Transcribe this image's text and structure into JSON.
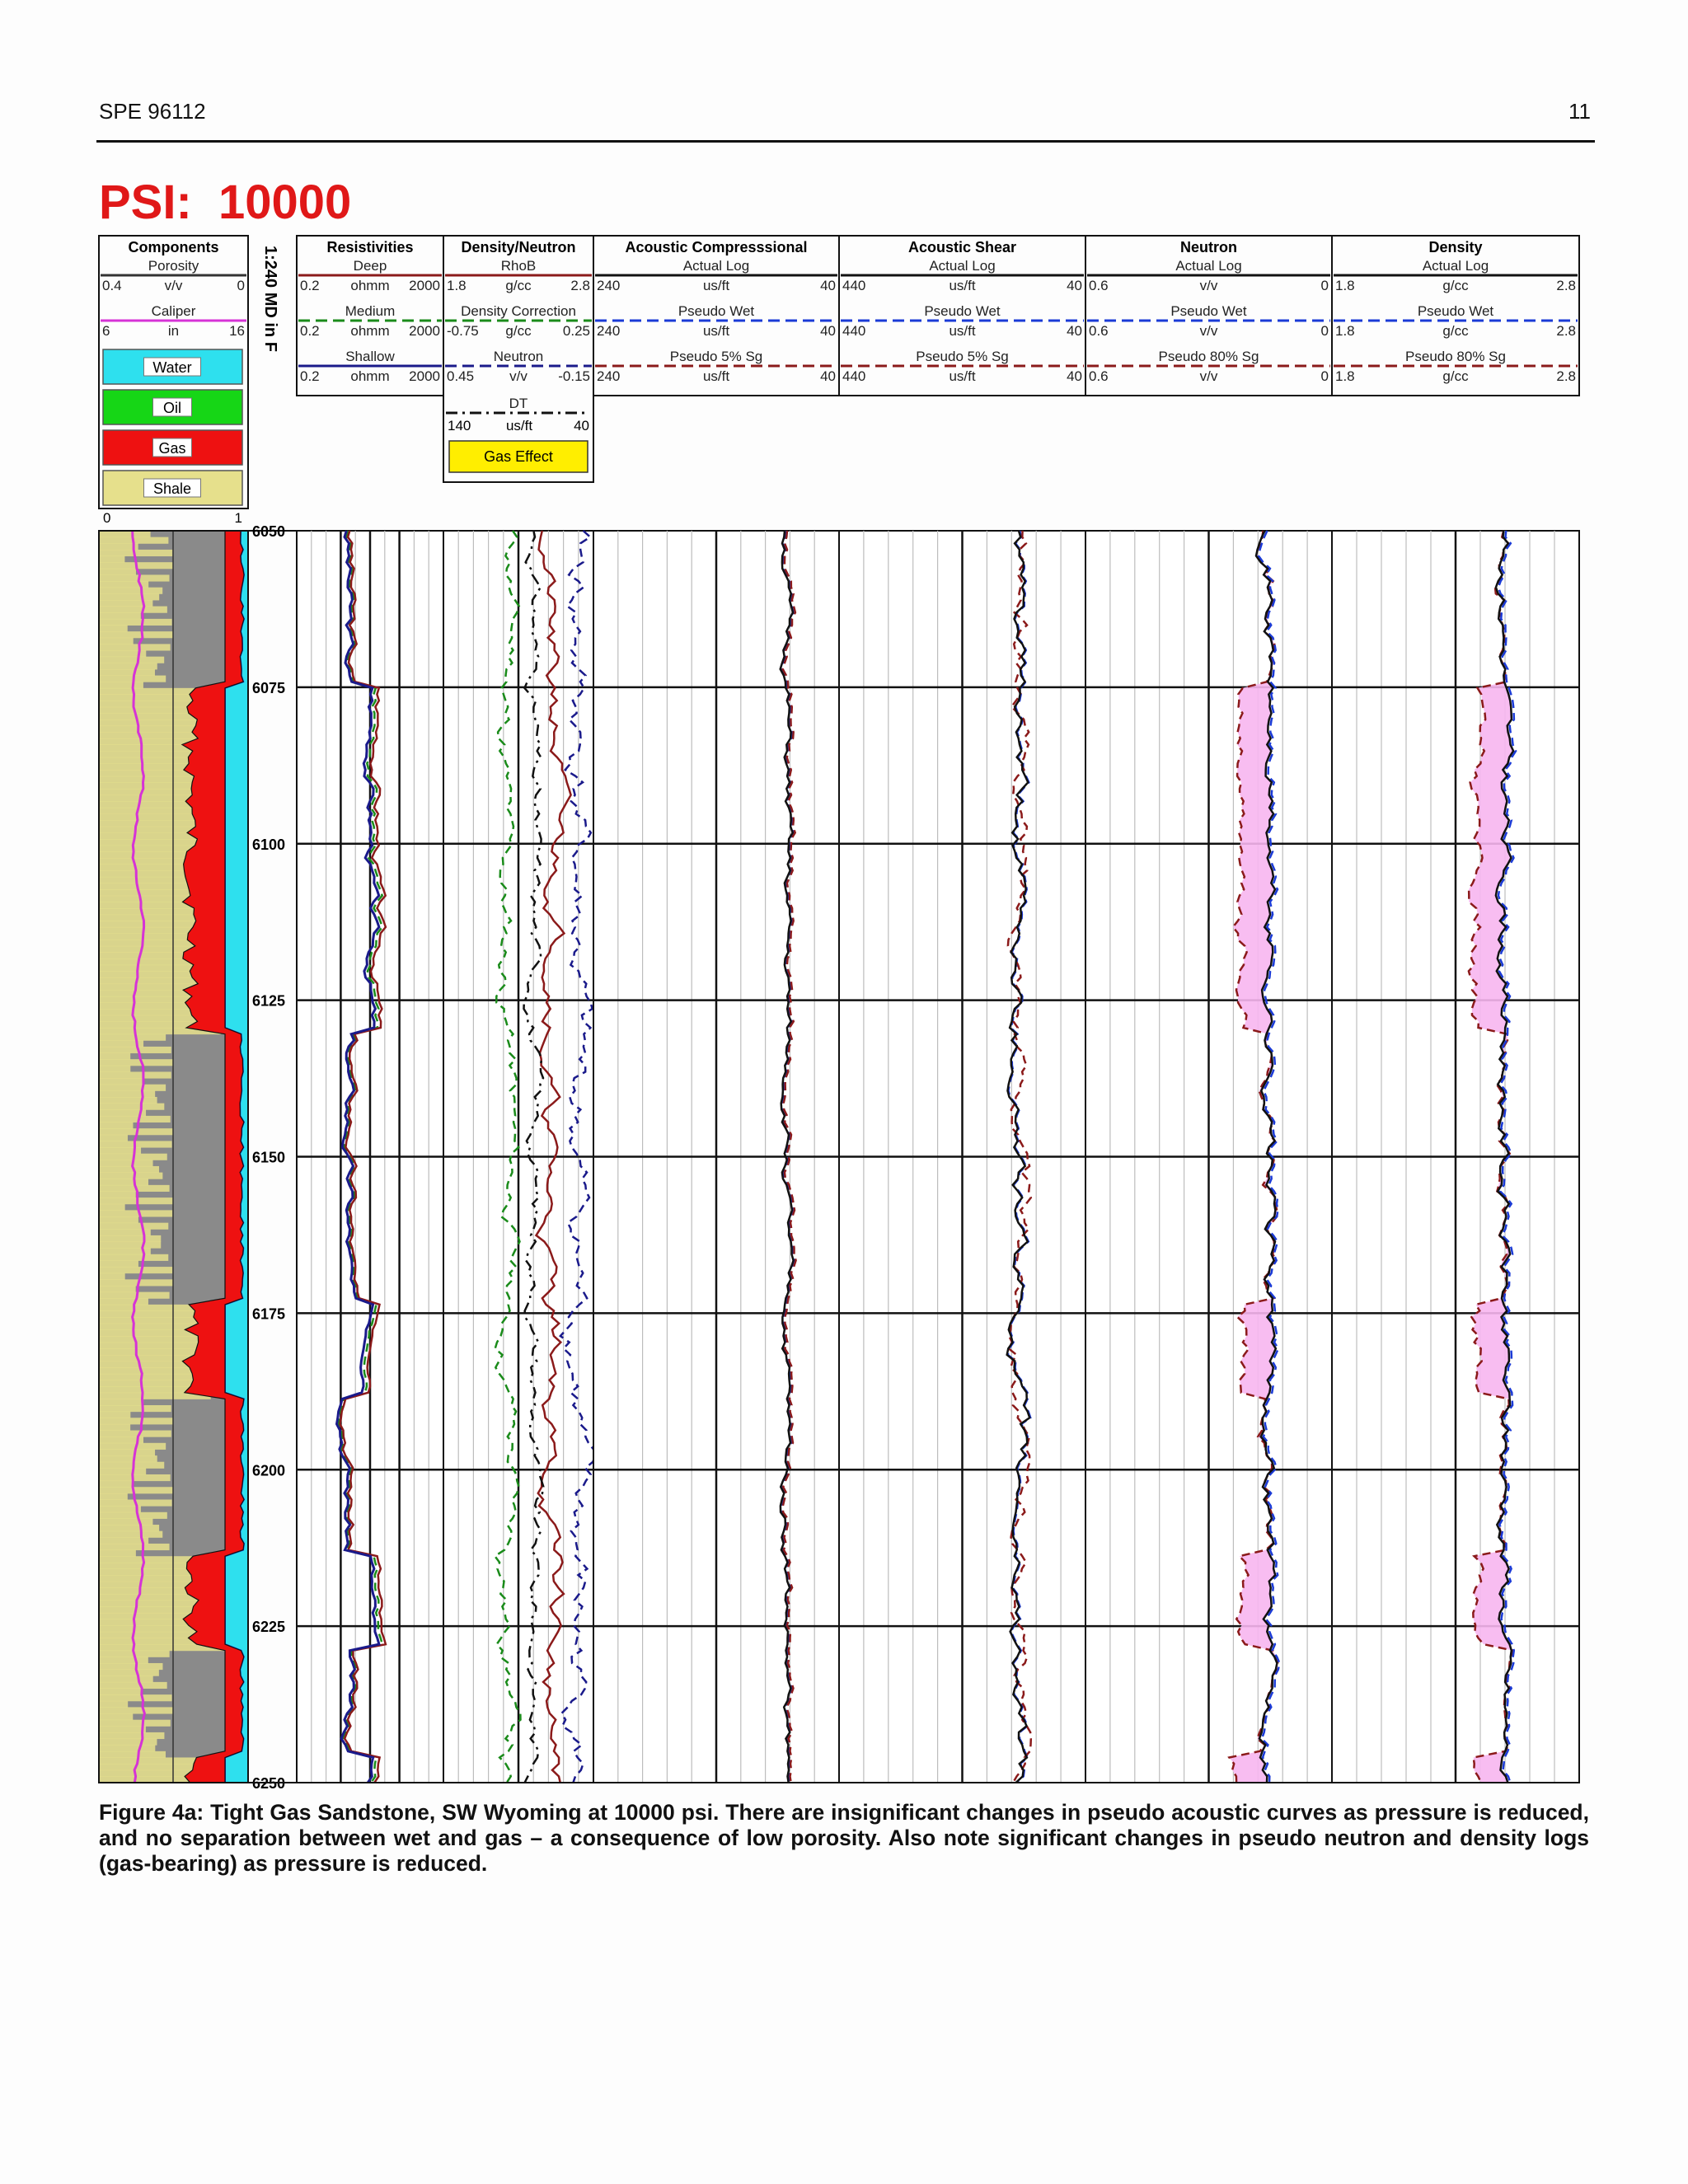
{
  "header": {
    "paper_id": "SPE 96112",
    "page_number": "11"
  },
  "figure": {
    "title": "PSI:  10000",
    "depth_axis_label": "1:240 MD in F",
    "depth_ticks": [
      "6050",
      "6075",
      "6100",
      "6125",
      "6150",
      "6175",
      "6200",
      "6225",
      "6250"
    ],
    "tracks": [
      {
        "id": "components",
        "title": "Components",
        "rows": [
          {
            "name": "Porosity",
            "left": "0.4",
            "unit": "v/v",
            "right": "0",
            "color": "#333333",
            "dash": "solid"
          },
          {
            "name": "Caliper",
            "left": "6",
            "unit": "in",
            "right": "16",
            "color": "#d633d6",
            "dash": "solid"
          }
        ]
      },
      {
        "id": "resistivities",
        "title": "Resistivities",
        "rows": [
          {
            "name": "Deep",
            "left": "0.2",
            "unit": "ohmm",
            "right": "2000",
            "color": "#8b1a1a",
            "dash": "solid"
          },
          {
            "name": "Medium",
            "left": "0.2",
            "unit": "ohmm",
            "right": "2000",
            "color": "#1a8b1a",
            "dash": "dashed"
          },
          {
            "name": "Shallow",
            "left": "0.2",
            "unit": "ohmm",
            "right": "2000",
            "color": "#1a1a8b",
            "dash": "solid"
          }
        ]
      },
      {
        "id": "density_neutron",
        "title": "Density/Neutron",
        "rows": [
          {
            "name": "RhoB",
            "left": "1.8",
            "unit": "g/cc",
            "right": "2.8",
            "color": "#8b1a1a",
            "dash": "solid"
          },
          {
            "name": "Density Correction",
            "left": "-0.75",
            "unit": "g/cc",
            "right": "0.25",
            "color": "#1a8b1a",
            "dash": "dashed"
          },
          {
            "name": "Neutron",
            "left": "0.45",
            "unit": "v/v",
            "right": "-0.15",
            "color": "#1a1a8b",
            "dash": "dashed"
          },
          {
            "name": "DT",
            "left": "140",
            "unit": "us/ft",
            "right": "40",
            "color": "#111111",
            "dash": "dashdot"
          }
        ]
      },
      {
        "id": "acoustic_compressional",
        "title": "Acoustic Compresssional",
        "rows": [
          {
            "name": "Actual Log",
            "left": "240",
            "unit": "us/ft",
            "right": "40",
            "color": "#111111",
            "dash": "solid"
          },
          {
            "name": "Pseudo Wet",
            "left": "240",
            "unit": "us/ft",
            "right": "40",
            "color": "#1a3ad6",
            "dash": "dashed"
          },
          {
            "name": "Pseudo 5% Sg",
            "left": "240",
            "unit": "us/ft",
            "right": "40",
            "color": "#8b1a1a",
            "dash": "dashed"
          }
        ]
      },
      {
        "id": "acoustic_shear",
        "title": "Acoustic Shear",
        "rows": [
          {
            "name": "Actual Log",
            "left": "440",
            "unit": "us/ft",
            "right": "40",
            "color": "#111111",
            "dash": "solid"
          },
          {
            "name": "Pseudo Wet",
            "left": "440",
            "unit": "us/ft",
            "right": "40",
            "color": "#1a3ad6",
            "dash": "dashed"
          },
          {
            "name": "Pseudo 5% Sg",
            "left": "440",
            "unit": "us/ft",
            "right": "40",
            "color": "#8b1a1a",
            "dash": "dashed"
          }
        ]
      },
      {
        "id": "neutron",
        "title": "Neutron",
        "rows": [
          {
            "name": "Actual Log",
            "left": "0.6",
            "unit": "v/v",
            "right": "0",
            "color": "#111111",
            "dash": "solid"
          },
          {
            "name": "Pseudo Wet",
            "left": "0.6",
            "unit": "v/v",
            "right": "0",
            "color": "#1a3ad6",
            "dash": "dashed"
          },
          {
            "name": "Pseudo 80% Sg",
            "left": "0.6",
            "unit": "v/v",
            "right": "0",
            "color": "#8b1a1a",
            "dash": "dashed"
          }
        ]
      },
      {
        "id": "density",
        "title": "Density",
        "rows": [
          {
            "name": "Actual Log",
            "left": "1.8",
            "unit": "g/cc",
            "right": "2.8",
            "color": "#111111",
            "dash": "solid"
          },
          {
            "name": "Pseudo Wet",
            "left": "1.8",
            "unit": "g/cc",
            "right": "2.8",
            "color": "#1a3ad6",
            "dash": "dashed"
          },
          {
            "name": "Pseudo 80% Sg",
            "left": "1.8",
            "unit": "g/cc",
            "right": "2.8",
            "color": "#8b1a1a",
            "dash": "dashed"
          }
        ]
      }
    ],
    "component_legend": [
      {
        "label": "Water",
        "color": "#2ee0ee"
      },
      {
        "label": "Oil",
        "color": "#16d616"
      },
      {
        "label": "Gas",
        "color": "#ee1111"
      },
      {
        "label": "Shale",
        "color": "#e6e08c"
      }
    ],
    "component_scale": {
      "left": "0",
      "right": "1"
    },
    "gas_effect_label": "Gas Effect",
    "gas_effect_color": "#ffee00"
  },
  "caption": "Figure 4a: Tight Gas Sandstone, SW Wyoming at 10000 psi.  There are insignificant changes in pseudo acoustic curves as pressure is reduced, and no separation between wet and gas – a consequence of low porosity.  Also note significant changes in pseudo neutron and density logs (gas-bearing) as pressure is reduced."
}
